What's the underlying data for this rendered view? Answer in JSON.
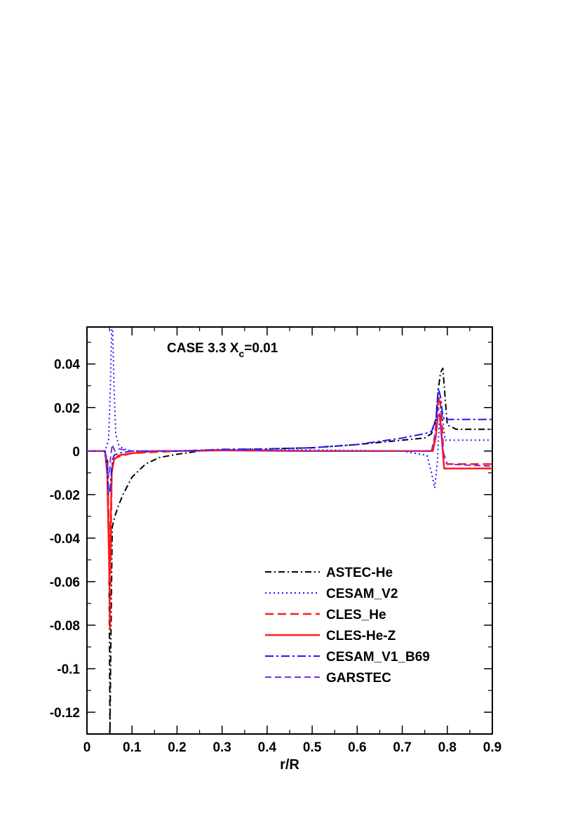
{
  "chart_data": {
    "type": "line",
    "annotation": {
      "main": "CASE 3.3 X",
      "sub": "c",
      "tail": "=0.01"
    },
    "xlabel": "r/R",
    "ylabel": "",
    "xlim": [
      0,
      0.9
    ],
    "ylim": [
      -0.13,
      0.057
    ],
    "xticks": [
      0,
      0.1,
      0.2,
      0.3,
      0.4,
      0.5,
      0.6,
      0.7,
      0.8,
      0.9
    ],
    "xtick_labels": [
      "0",
      "0.1",
      "0.2",
      "0.3",
      "0.4",
      "0.5",
      "0.6",
      "0.7",
      "0.8",
      "0.9"
    ],
    "yticks": [
      0.04,
      0.02,
      0,
      -0.02,
      -0.04,
      -0.06,
      -0.08,
      -0.1,
      -0.12
    ],
    "ytick_labels": [
      "0.04",
      "0.02",
      "0",
      "-0.02",
      "-0.04",
      "-0.06",
      "-0.08",
      "-0.1",
      "-0.12"
    ],
    "legend_position": "lower-right",
    "series": [
      {
        "name": "ASTEC-He",
        "color": "#000000",
        "dash": "9,4,2,4",
        "width": 2,
        "x": [
          0,
          0.04,
          0.046,
          0.049,
          0.051,
          0.053,
          0.056,
          0.062,
          0.07,
          0.08,
          0.1,
          0.13,
          0.16,
          0.2,
          0.25,
          0.3,
          0.4,
          0.5,
          0.6,
          0.7,
          0.75,
          0.765,
          0.775,
          0.78,
          0.785,
          0.79,
          0.795,
          0.8,
          0.82,
          0.9
        ],
        "y": [
          0,
          0,
          -0.005,
          -0.05,
          -0.13,
          -0.09,
          -0.035,
          -0.03,
          -0.025,
          -0.02,
          -0.012,
          -0.006,
          -0.003,
          -0.0015,
          0,
          0.0005,
          0.001,
          0.0015,
          0.003,
          0.005,
          0.006,
          0.008,
          0.015,
          0.028,
          0.036,
          0.038,
          0.025,
          0.012,
          0.01,
          0.01
        ]
      },
      {
        "name": "CESAM_V2",
        "color": "#1a1aff",
        "dash": "2,4",
        "width": 2,
        "x": [
          0,
          0.04,
          0.048,
          0.052,
          0.055,
          0.057,
          0.06,
          0.064,
          0.07,
          0.08,
          0.1,
          0.2,
          0.3,
          0.5,
          0.7,
          0.755,
          0.765,
          0.772,
          0.778,
          0.782,
          0.787,
          0.795,
          0.9
        ],
        "y": [
          0,
          0,
          0.005,
          0.03,
          0.057,
          0.057,
          0.03,
          0.008,
          0.003,
          0.001,
          0,
          0,
          0.0005,
          0.0005,
          0,
          -0.002,
          -0.01,
          -0.017,
          -0.005,
          0.012,
          0.02,
          0.005,
          0.005
        ]
      },
      {
        "name": "CLES_He",
        "color": "#ff1a1a",
        "dash": "12,6",
        "width": 2.5,
        "x": [
          0,
          0.04,
          0.046,
          0.049,
          0.051,
          0.053,
          0.055,
          0.058,
          0.065,
          0.08,
          0.1,
          0.15,
          0.2,
          0.3,
          0.5,
          0.7,
          0.765,
          0.772,
          0.778,
          0.782,
          0.787,
          0.792,
          0.8,
          0.9
        ],
        "y": [
          0,
          0,
          -0.01,
          -0.04,
          -0.082,
          -0.045,
          -0.01,
          -0.004,
          -0.003,
          -0.002,
          -0.001,
          -0.0005,
          0,
          0.0005,
          0,
          0,
          0,
          0.005,
          0.02,
          0.025,
          0.018,
          -0.004,
          -0.006,
          -0.006
        ]
      },
      {
        "name": "CLES-He-Z",
        "color": "#ff1a1a",
        "dash": "",
        "width": 2.5,
        "x": [
          0,
          0.04,
          0.045,
          0.048,
          0.05,
          0.052,
          0.055,
          0.06,
          0.07,
          0.1,
          0.15,
          0.2,
          0.3,
          0.5,
          0.7,
          0.768,
          0.774,
          0.779,
          0.783,
          0.788,
          0.793,
          0.8,
          0.9
        ],
        "y": [
          0,
          0,
          -0.01,
          -0.04,
          -0.06,
          -0.04,
          -0.01,
          -0.004,
          -0.002,
          -0.001,
          0,
          0,
          0.0003,
          0,
          0,
          0,
          0.006,
          0.016,
          0.017,
          0.005,
          -0.008,
          -0.008,
          -0.008
        ]
      },
      {
        "name": "CESAM_V1_B69",
        "color": "#1a1aff",
        "dash": "12,4,3,4",
        "width": 2,
        "x": [
          0,
          0.04,
          0.045,
          0.048,
          0.051,
          0.054,
          0.057,
          0.06,
          0.07,
          0.1,
          0.2,
          0.3,
          0.4,
          0.5,
          0.6,
          0.7,
          0.75,
          0.765,
          0.775,
          0.78,
          0.785,
          0.79,
          0.795,
          0.8,
          0.9
        ],
        "y": [
          0,
          0,
          -0.01,
          -0.02,
          -0.018,
          -0.01,
          -0.004,
          -0.002,
          -0.001,
          0,
          0,
          0.0008,
          0.001,
          0.0015,
          0.003,
          0.006,
          0.008,
          0.009,
          0.015,
          0.029,
          0.025,
          0.016,
          0.014,
          0.0145,
          0.0145
        ]
      },
      {
        "name": "GARSTEC",
        "color": "#7b2fd6",
        "dash": "9,5",
        "width": 2,
        "x": [
          0,
          0.04,
          0.045,
          0.048,
          0.05,
          0.053,
          0.056,
          0.058,
          0.062,
          0.07,
          0.1,
          0.2,
          0.3,
          0.5,
          0.7,
          0.765,
          0.775,
          0.78,
          0.785,
          0.79,
          0.8,
          0.9
        ],
        "y": [
          0,
          0,
          -0.005,
          -0.012,
          -0.01,
          -0.002,
          0.003,
          0.002,
          0,
          0.001,
          0,
          0,
          0.0005,
          0,
          0,
          0,
          0.01,
          0.02,
          0.015,
          0,
          -0.006,
          -0.007
        ]
      }
    ]
  }
}
